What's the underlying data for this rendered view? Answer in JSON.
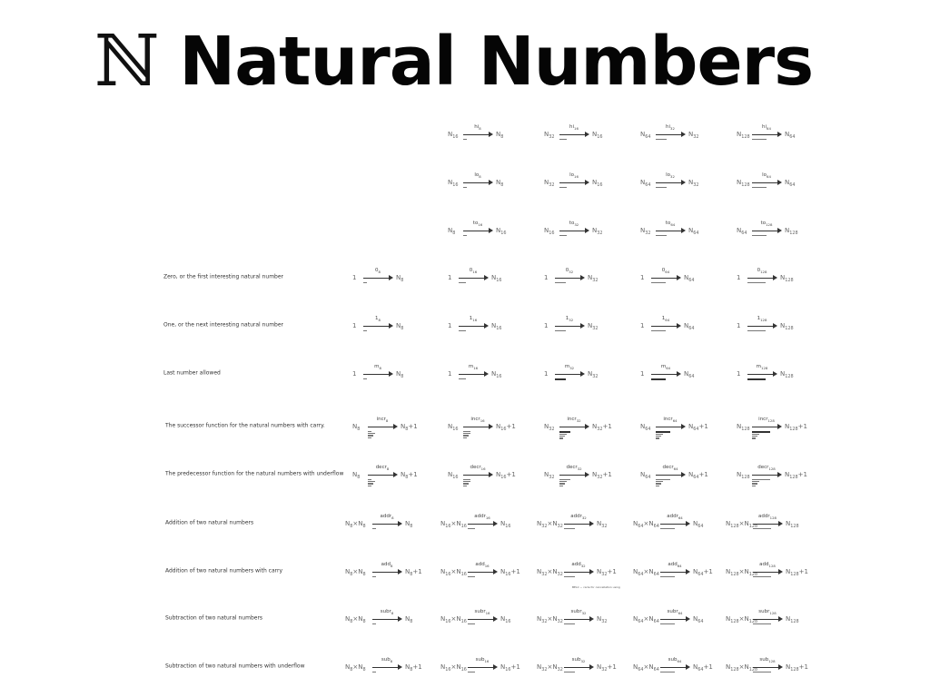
{
  "page": {
    "title_symbol": "ℕ",
    "title_text": "Natural Numbers",
    "footnote": "BELC ~ carle for cancellation using"
  },
  "rows": [
    {
      "label": "",
      "arrows": [
        {
          "lhs": "N",
          "lhs_sub": "16",
          "name": "hi",
          "name_sub": "8",
          "rhs": "N",
          "rhs_sub": "8",
          "rhs_suffix": ""
        },
        {
          "lhs": "N",
          "lhs_sub": "32",
          "name": "hi",
          "name_sub": "16",
          "rhs": "N",
          "rhs_sub": "16",
          "rhs_suffix": ""
        },
        {
          "lhs": "N",
          "lhs_sub": "64",
          "name": "hi",
          "name_sub": "32",
          "rhs": "N",
          "rhs_sub": "32",
          "rhs_suffix": ""
        },
        {
          "lhs": "N",
          "lhs_sub": "128",
          "name": "hi",
          "name_sub": "64",
          "rhs": "N",
          "rhs_sub": "64",
          "rhs_suffix": ""
        }
      ]
    },
    {
      "label": "",
      "arrows": [
        {
          "lhs": "N",
          "lhs_sub": "16",
          "name": "lo",
          "name_sub": "8",
          "rhs": "N",
          "rhs_sub": "8",
          "rhs_suffix": ""
        },
        {
          "lhs": "N",
          "lhs_sub": "32",
          "name": "lo",
          "name_sub": "16",
          "rhs": "N",
          "rhs_sub": "16",
          "rhs_suffix": ""
        },
        {
          "lhs": "N",
          "lhs_sub": "64",
          "name": "lo",
          "name_sub": "32",
          "rhs": "N",
          "rhs_sub": "32",
          "rhs_suffix": ""
        },
        {
          "lhs": "N",
          "lhs_sub": "128",
          "name": "lo",
          "name_sub": "64",
          "rhs": "N",
          "rhs_sub": "64",
          "rhs_suffix": ""
        }
      ]
    },
    {
      "label": "",
      "arrows": [
        {
          "lhs": "N",
          "lhs_sub": "8",
          "name": "to",
          "name_sub": "16",
          "rhs": "N",
          "rhs_sub": "16",
          "rhs_suffix": ""
        },
        {
          "lhs": "N",
          "lhs_sub": "16",
          "name": "to",
          "name_sub": "32",
          "rhs": "N",
          "rhs_sub": "32",
          "rhs_suffix": ""
        },
        {
          "lhs": "N",
          "lhs_sub": "32",
          "name": "to",
          "name_sub": "64",
          "rhs": "N",
          "rhs_sub": "64",
          "rhs_suffix": ""
        },
        {
          "lhs": "N",
          "lhs_sub": "64",
          "name": "to",
          "name_sub": "128",
          "rhs": "N",
          "rhs_sub": "128",
          "rhs_suffix": ""
        }
      ]
    },
    {
      "label": "Zero, or the first interesting natural number",
      "arrows": [
        {
          "lhs": "1",
          "lhs_sub": "",
          "name": "0",
          "name_sub": "8",
          "rhs": "N",
          "rhs_sub": "8",
          "rhs_suffix": ""
        },
        {
          "lhs": "1",
          "lhs_sub": "",
          "name": "0",
          "name_sub": "16",
          "rhs": "N",
          "rhs_sub": "16",
          "rhs_suffix": ""
        },
        {
          "lhs": "1",
          "lhs_sub": "",
          "name": "0",
          "name_sub": "32",
          "rhs": "N",
          "rhs_sub": "32",
          "rhs_suffix": ""
        },
        {
          "lhs": "1",
          "lhs_sub": "",
          "name": "0",
          "name_sub": "64",
          "rhs": "N",
          "rhs_sub": "64",
          "rhs_suffix": ""
        },
        {
          "lhs": "1",
          "lhs_sub": "",
          "name": "0",
          "name_sub": "128",
          "rhs": "N",
          "rhs_sub": "128",
          "rhs_suffix": ""
        }
      ]
    },
    {
      "label": "One, or the next interesting natural number",
      "arrows": [
        {
          "lhs": "1",
          "lhs_sub": "",
          "name": "1",
          "name_sub": "8",
          "rhs": "N",
          "rhs_sub": "8",
          "rhs_suffix": ""
        },
        {
          "lhs": "1",
          "lhs_sub": "",
          "name": "1",
          "name_sub": "16",
          "rhs": "N",
          "rhs_sub": "16",
          "rhs_suffix": ""
        },
        {
          "lhs": "1",
          "lhs_sub": "",
          "name": "1",
          "name_sub": "32",
          "rhs": "N",
          "rhs_sub": "32",
          "rhs_suffix": ""
        },
        {
          "lhs": "1",
          "lhs_sub": "",
          "name": "1",
          "name_sub": "64",
          "rhs": "N",
          "rhs_sub": "64",
          "rhs_suffix": ""
        },
        {
          "lhs": "1",
          "lhs_sub": "",
          "name": "1",
          "name_sub": "128",
          "rhs": "N",
          "rhs_sub": "128",
          "rhs_suffix": ""
        }
      ]
    },
    {
      "label": "Last number allowed",
      "arrows": [
        {
          "lhs": "1",
          "lhs_sub": "",
          "name": "m",
          "name_sub": "8",
          "rhs": "N",
          "rhs_sub": "8",
          "rhs_suffix": ""
        },
        {
          "lhs": "1",
          "lhs_sub": "",
          "name": "m",
          "name_sub": "16",
          "rhs": "N",
          "rhs_sub": "16",
          "rhs_suffix": ""
        },
        {
          "lhs": "1",
          "lhs_sub": "",
          "name": "m",
          "name_sub": "32",
          "rhs": "N",
          "rhs_sub": "32",
          "rhs_suffix": ""
        },
        {
          "lhs": "1",
          "lhs_sub": "",
          "name": "m",
          "name_sub": "64",
          "rhs": "N",
          "rhs_sub": "64",
          "rhs_suffix": ""
        },
        {
          "lhs": "1",
          "lhs_sub": "",
          "name": "m",
          "name_sub": "128",
          "rhs": "N",
          "rhs_sub": "128",
          "rhs_suffix": ""
        }
      ]
    },
    {
      "label": "The successor function for the natural numbers with carry.",
      "arrows": [
        {
          "lhs": "N",
          "lhs_sub": "8",
          "name": "incr",
          "name_sub": "8",
          "rhs": "N",
          "rhs_sub": "8",
          "rhs_suffix": "+1"
        },
        {
          "lhs": "N",
          "lhs_sub": "16",
          "name": "incr",
          "name_sub": "16",
          "rhs": "N",
          "rhs_sub": "16",
          "rhs_suffix": "+1"
        },
        {
          "lhs": "N",
          "lhs_sub": "32",
          "name": "incr",
          "name_sub": "32",
          "rhs": "N",
          "rhs_sub": "32",
          "rhs_suffix": "+1"
        },
        {
          "lhs": "N",
          "lhs_sub": "64",
          "name": "incr",
          "name_sub": "64",
          "rhs": "N",
          "rhs_sub": "64",
          "rhs_suffix": "+1"
        },
        {
          "lhs": "N",
          "lhs_sub": "128",
          "name": "incr",
          "name_sub": "128",
          "rhs": "N",
          "rhs_sub": "128",
          "rhs_suffix": "+1"
        }
      ]
    },
    {
      "label": "The predecessor function for the natural numbers with underflow",
      "arrows": [
        {
          "lhs": "N",
          "lhs_sub": "8",
          "name": "decr",
          "name_sub": "8",
          "rhs": "N",
          "rhs_sub": "8",
          "rhs_suffix": "+1"
        },
        {
          "lhs": "N",
          "lhs_sub": "16",
          "name": "decr",
          "name_sub": "16",
          "rhs": "N",
          "rhs_sub": "16",
          "rhs_suffix": "+1"
        },
        {
          "lhs": "N",
          "lhs_sub": "32",
          "name": "decr",
          "name_sub": "32",
          "rhs": "N",
          "rhs_sub": "32",
          "rhs_suffix": "+1"
        },
        {
          "lhs": "N",
          "lhs_sub": "64",
          "name": "decr",
          "name_sub": "64",
          "rhs": "N",
          "rhs_sub": "64",
          "rhs_suffix": "+1"
        },
        {
          "lhs": "N",
          "lhs_sub": "128",
          "name": "decr",
          "name_sub": "128",
          "rhs": "N",
          "rhs_sub": "128",
          "rhs_suffix": "+1"
        }
      ]
    },
    {
      "label": "Addition of two natural numbers",
      "arrows": [
        {
          "lhs": "N×N",
          "lhs_sub": "8",
          "name": "addr",
          "name_sub": "8",
          "rhs": "N",
          "rhs_sub": "8",
          "rhs_suffix": ""
        },
        {
          "lhs": "N×N",
          "lhs_sub": "16",
          "name": "addr",
          "name_sub": "16",
          "rhs": "N",
          "rhs_sub": "16",
          "rhs_suffix": ""
        },
        {
          "lhs": "N×N",
          "lhs_sub": "32",
          "name": "addr",
          "name_sub": "32",
          "rhs": "N",
          "rhs_sub": "32",
          "rhs_suffix": ""
        },
        {
          "lhs": "N×N",
          "lhs_sub": "64",
          "name": "addr",
          "name_sub": "64",
          "rhs": "N",
          "rhs_sub": "64",
          "rhs_suffix": ""
        },
        {
          "lhs": "N×N",
          "lhs_sub": "128",
          "name": "addr",
          "name_sub": "128",
          "rhs": "N",
          "rhs_sub": "128",
          "rhs_suffix": ""
        }
      ]
    },
    {
      "label": "Addition of two natural numbers with carry",
      "arrows": [
        {
          "lhs": "N×N",
          "lhs_sub": "8",
          "name": "add",
          "name_sub": "8",
          "rhs": "N",
          "rhs_sub": "8",
          "rhs_suffix": "+1"
        },
        {
          "lhs": "N×N",
          "lhs_sub": "16",
          "name": "add",
          "name_sub": "16",
          "rhs": "N",
          "rhs_sub": "16",
          "rhs_suffix": "+1"
        },
        {
          "lhs": "N×N",
          "lhs_sub": "32",
          "name": "add",
          "name_sub": "32",
          "rhs": "N",
          "rhs_sub": "32",
          "rhs_suffix": "+1"
        },
        {
          "lhs": "N×N",
          "lhs_sub": "64",
          "name": "add",
          "name_sub": "64",
          "rhs": "N",
          "rhs_sub": "64",
          "rhs_suffix": "+1"
        },
        {
          "lhs": "N×N",
          "lhs_sub": "128",
          "name": "add",
          "name_sub": "128",
          "rhs": "N",
          "rhs_sub": "128",
          "rhs_suffix": "+1"
        }
      ]
    },
    {
      "label": "Subtraction of two natural numbers",
      "arrows": [
        {
          "lhs": "N×N",
          "lhs_sub": "8",
          "name": "subr",
          "name_sub": "8",
          "rhs": "N",
          "rhs_sub": "8",
          "rhs_suffix": ""
        },
        {
          "lhs": "N×N",
          "lhs_sub": "16",
          "name": "subr",
          "name_sub": "16",
          "rhs": "N",
          "rhs_sub": "16",
          "rhs_suffix": ""
        },
        {
          "lhs": "N×N",
          "lhs_sub": "32",
          "name": "subr",
          "name_sub": "32",
          "rhs": "N",
          "rhs_sub": "32",
          "rhs_suffix": ""
        },
        {
          "lhs": "N×N",
          "lhs_sub": "64",
          "name": "subr",
          "name_sub": "64",
          "rhs": "N",
          "rhs_sub": "64",
          "rhs_suffix": ""
        },
        {
          "lhs": "N×N",
          "lhs_sub": "128",
          "name": "subr",
          "name_sub": "128",
          "rhs": "N",
          "rhs_sub": "128",
          "rhs_suffix": ""
        }
      ]
    },
    {
      "label": "Subtraction of two natural numbers with underflow",
      "arrows": [
        {
          "lhs": "N×N",
          "lhs_sub": "8",
          "name": "sub",
          "name_sub": "8",
          "rhs": "N",
          "rhs_sub": "8",
          "rhs_suffix": "+1"
        },
        {
          "lhs": "N×N",
          "lhs_sub": "16",
          "name": "sub",
          "name_sub": "16",
          "rhs": "N",
          "rhs_sub": "16",
          "rhs_suffix": "+1"
        },
        {
          "lhs": "N×N",
          "lhs_sub": "32",
          "name": "sub",
          "name_sub": "32",
          "rhs": "N",
          "rhs_sub": "32",
          "rhs_suffix": "+1"
        },
        {
          "lhs": "N×N",
          "lhs_sub": "64",
          "name": "sub",
          "name_sub": "64",
          "rhs": "N",
          "rhs_sub": "64",
          "rhs_suffix": "+1"
        },
        {
          "lhs": "N×N",
          "lhs_sub": "128",
          "name": "sub",
          "name_sub": "128",
          "rhs": "N",
          "rhs_sub": "128",
          "rhs_suffix": "+1"
        }
      ]
    }
  ]
}
